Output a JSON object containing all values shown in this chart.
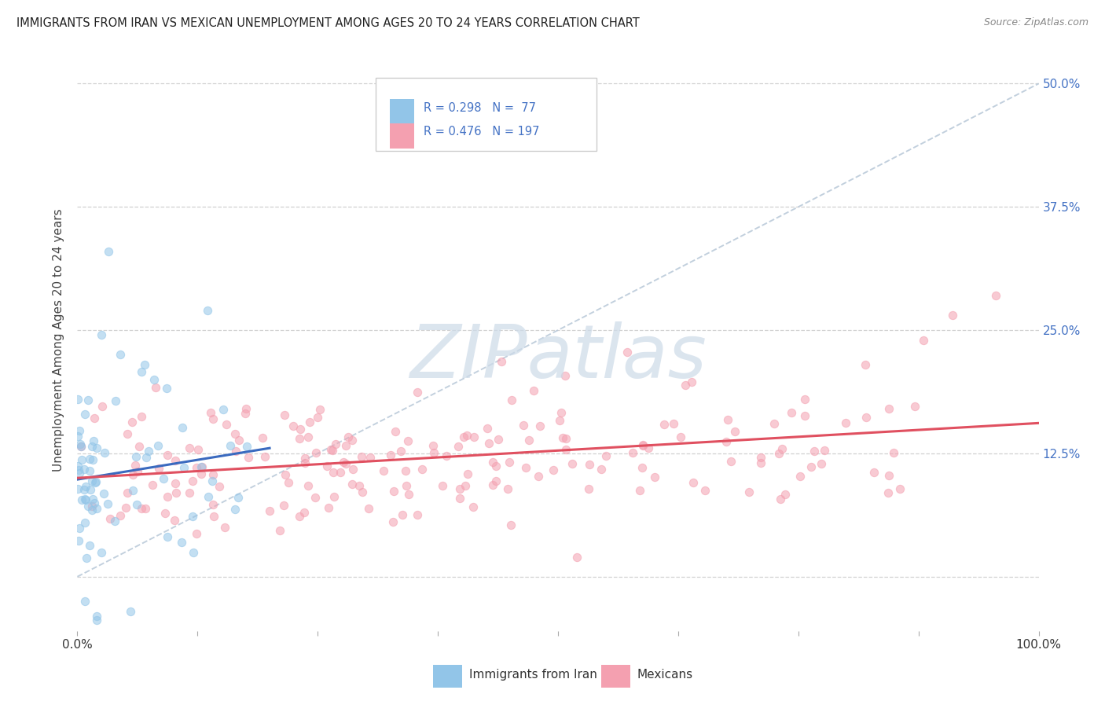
{
  "title": "IMMIGRANTS FROM IRAN VS MEXICAN UNEMPLOYMENT AMONG AGES 20 TO 24 YEARS CORRELATION CHART",
  "source": "Source: ZipAtlas.com",
  "ylabel": "Unemployment Among Ages 20 to 24 years",
  "x_ticks": [
    0.0,
    0.125,
    0.25,
    0.375,
    0.5,
    0.625,
    0.75,
    0.875,
    1.0
  ],
  "x_tick_labels": [
    "0.0%",
    "",
    "",
    "",
    "",
    "",
    "",
    "",
    "100.0%"
  ],
  "y_ticks_right": [
    0.0,
    0.125,
    0.25,
    0.375,
    0.5
  ],
  "y_tick_labels_right": [
    "",
    "12.5%",
    "25.0%",
    "37.5%",
    "50.0%"
  ],
  "x_range": [
    0.0,
    1.0
  ],
  "y_range": [
    -0.055,
    0.535
  ],
  "legend_label_iran": "R = 0.298   N =  77",
  "legend_label_mex": "R = 0.476   N = 197",
  "iran_color": "#92c5e8",
  "mexican_color": "#f4a0b0",
  "iran_line_color": "#3a6abf",
  "mexican_line_color": "#e05060",
  "diagonal_color": "#b8c8d8",
  "watermark_color": "#ccdae8",
  "grid_color": "#cccccc",
  "legend_text_color": "#4472c4",
  "iran_R": 0.298,
  "iran_N": 77,
  "mexican_R": 0.476,
  "mexican_N": 197,
  "iran_scatter_alpha": 0.55,
  "mex_scatter_alpha": 0.55,
  "scatter_size": 55,
  "scatter_linewidth": 0.8
}
